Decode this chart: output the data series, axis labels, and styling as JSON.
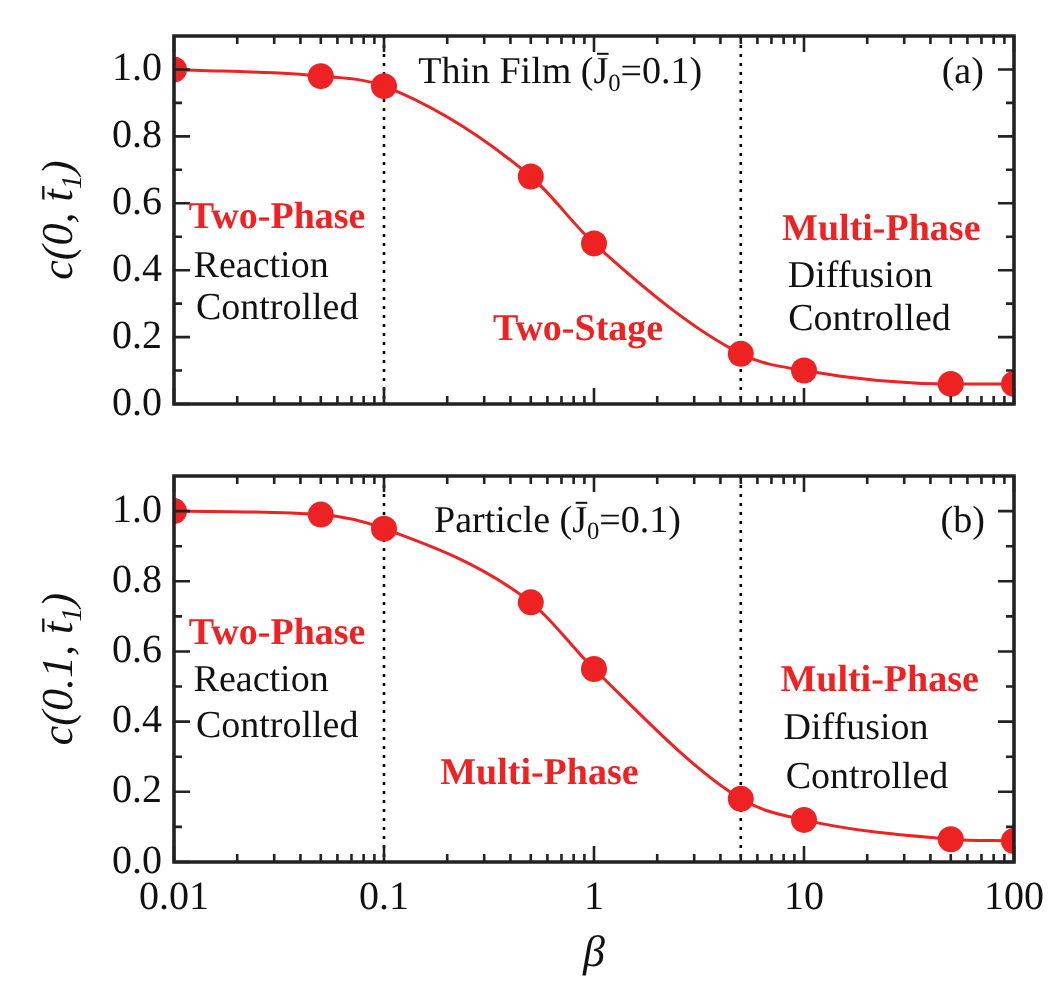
{
  "chart_data": [
    {
      "type": "line",
      "xlabel": null,
      "ylabel": "c(0, t̄$_{1}$)",
      "log": "x",
      "marker": "circle",
      "tick_labels": "y",
      "x": [
        0.01,
        0.05,
        0.1,
        0.5,
        1,
        5,
        10,
        50,
        100
      ],
      "series": [
        {
          "color": "#ee2222",
          "values": [
            1.0,
            0.98,
            0.95,
            0.68,
            0.48,
            0.15,
            0.1,
            0.06,
            0.06
          ]
        }
      ],
      "xlim": [
        0.01,
        100
      ],
      "xticks": [
        0.01,
        {
          "value": 0.02,
          "label": null
        },
        {
          "value": 0.03,
          "label": null
        },
        {
          "value": 0.04,
          "label": null
        },
        {
          "value": 0.05,
          "label": null
        },
        {
          "value": 0.06,
          "label": null
        },
        {
          "value": 0.07,
          "label": null
        },
        {
          "value": 0.08,
          "label": null
        },
        {
          "value": 0.09,
          "label": null
        },
        0.1,
        {
          "value": 0.2,
          "label": null
        },
        {
          "value": 0.3,
          "label": null
        },
        {
          "value": 0.4,
          "label": null
        },
        {
          "value": 0.5,
          "label": null
        },
        {
          "value": 0.6,
          "label": null
        },
        {
          "value": 0.7,
          "label": null
        },
        {
          "value": 0.8,
          "label": null
        },
        {
          "value": 0.9,
          "label": null
        },
        1,
        {
          "value": 2,
          "label": null
        },
        {
          "value": 3,
          "label": null
        },
        {
          "value": 4,
          "label": null
        },
        {
          "value": 5,
          "label": null
        },
        {
          "value": 6,
          "label": null
        },
        {
          "value": 7,
          "label": null
        },
        {
          "value": 8,
          "label": null
        },
        {
          "value": 9,
          "label": null
        },
        10,
        {
          "value": 20,
          "label": null
        },
        {
          "value": 30,
          "label": null
        },
        {
          "value": 40,
          "label": null
        },
        {
          "value": 50,
          "label": null
        },
        {
          "value": 60,
          "label": null
        },
        {
          "value": 70,
          "label": null
        },
        {
          "value": 80,
          "label": null
        },
        {
          "value": 90,
          "label": null
        },
        100
      ],
      "ylim": [
        0,
        1.1
      ],
      "yticks": [
        {
          "value": 0,
          "label": "0.0"
        },
        {
          "value": 0.1,
          "label": null
        },
        0.2,
        {
          "value": 0.3,
          "label": null
        },
        0.4,
        {
          "value": 0.5,
          "label": null
        },
        0.6,
        {
          "value": 0.7,
          "label": null
        },
        0.8,
        {
          "value": 0.9,
          "label": null
        },
        {
          "value": 1,
          "label": "1.0"
        }
      ],
      "ref_lines": [
        {
          "axis": "x",
          "value": 0.1,
          "color": "#000000",
          "line_style": "dotted"
        },
        {
          "axis": "x",
          "value": 5,
          "color": "#000000",
          "line_style": "dotted"
        }
      ],
      "annotations": [
        "Thin Film (J̄$_{0}$=0.1)",
        "(a)",
        "Two-Phase",
        "Reaction",
        "Controlled",
        "Two-Stage",
        "Multi-Phase",
        "Diffusion",
        "Controlled"
      ]
    },
    {
      "type": "line",
      "xlabel": "β",
      "ylabel": "c(0.1, t̄$_{1}$)",
      "log": "x",
      "marker": "circle",
      "x": [
        0.01,
        0.05,
        0.1,
        0.5,
        1,
        5,
        10,
        50,
        100
      ],
      "series": [
        {
          "color": "#ee2222",
          "values": [
            1.0,
            0.99,
            0.95,
            0.74,
            0.55,
            0.18,
            0.12,
            0.065,
            0.06
          ]
        }
      ],
      "xlim": [
        0.01,
        100
      ],
      "xticks": [
        0.01,
        {
          "value": 0.02,
          "label": null
        },
        {
          "value": 0.03,
          "label": null
        },
        {
          "value": 0.04,
          "label": null
        },
        {
          "value": 0.05,
          "label": null
        },
        {
          "value": 0.06,
          "label": null
        },
        {
          "value": 0.07,
          "label": null
        },
        {
          "value": 0.08,
          "label": null
        },
        {
          "value": 0.09,
          "label": null
        },
        0.1,
        {
          "value": 0.2,
          "label": null
        },
        {
          "value": 0.3,
          "label": null
        },
        {
          "value": 0.4,
          "label": null
        },
        {
          "value": 0.5,
          "label": null
        },
        {
          "value": 0.6,
          "label": null
        },
        {
          "value": 0.7,
          "label": null
        },
        {
          "value": 0.8,
          "label": null
        },
        {
          "value": 0.9,
          "label": null
        },
        1,
        {
          "value": 2,
          "label": null
        },
        {
          "value": 3,
          "label": null
        },
        {
          "value": 4,
          "label": null
        },
        {
          "value": 5,
          "label": null
        },
        {
          "value": 6,
          "label": null
        },
        {
          "value": 7,
          "label": null
        },
        {
          "value": 8,
          "label": null
        },
        {
          "value": 9,
          "label": null
        },
        10,
        {
          "value": 20,
          "label": null
        },
        {
          "value": 30,
          "label": null
        },
        {
          "value": 40,
          "label": null
        },
        {
          "value": 50,
          "label": null
        },
        {
          "value": 60,
          "label": null
        },
        {
          "value": 70,
          "label": null
        },
        {
          "value": 80,
          "label": null
        },
        {
          "value": 90,
          "label": null
        },
        100
      ],
      "ylim": [
        0,
        1.1
      ],
      "yticks": [
        {
          "value": 0,
          "label": "0.0"
        },
        {
          "value": 0.1,
          "label": null
        },
        0.2,
        {
          "value": 0.3,
          "label": null
        },
        0.4,
        {
          "value": 0.5,
          "label": null
        },
        0.6,
        {
          "value": 0.7,
          "label": null
        },
        0.8,
        {
          "value": 0.9,
          "label": null
        },
        {
          "value": 1,
          "label": "1.0"
        }
      ],
      "ref_lines": [
        {
          "axis": "x",
          "value": 0.1,
          "color": "#000000",
          "line_style": "dotted"
        },
        {
          "axis": "x",
          "value": 5,
          "color": "#000000",
          "line_style": "dotted"
        }
      ],
      "annotations": [
        "Particle (J̄$_{0}$=0.1)",
        "(b)",
        "Two-Phase",
        "Reaction",
        "Controlled",
        "Multi-Phase",
        "Multi-Phase",
        "Diffusion",
        "Controlled"
      ]
    }
  ]
}
